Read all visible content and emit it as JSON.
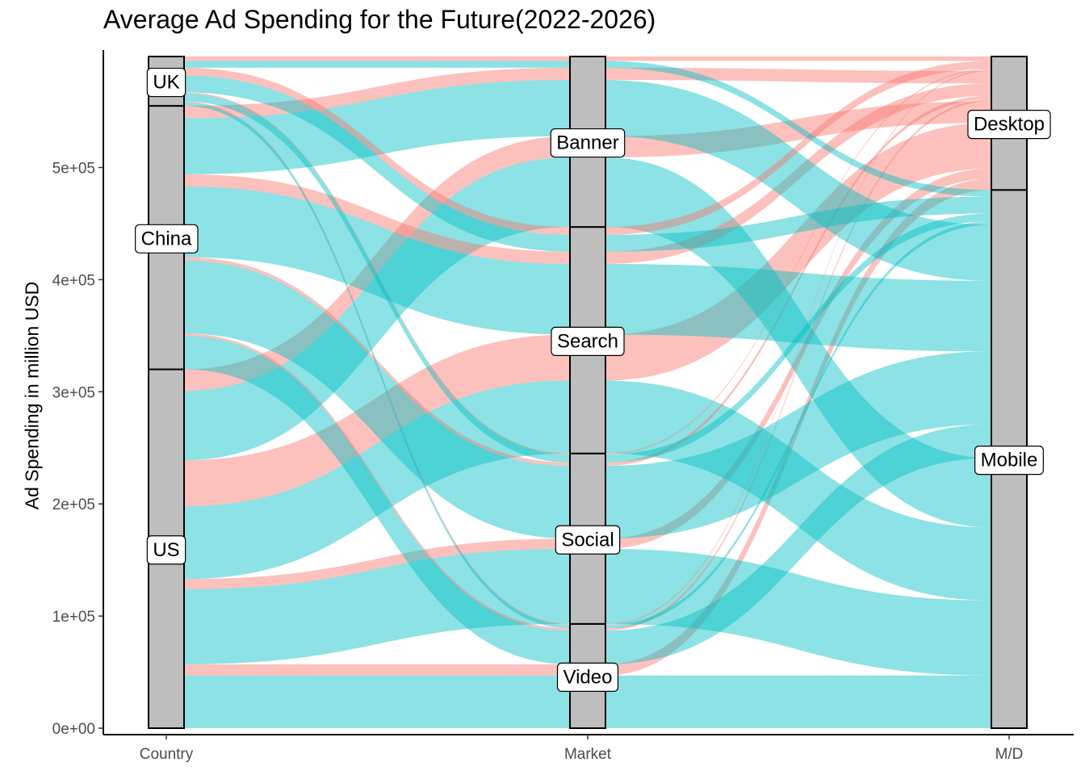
{
  "chart_data": {
    "type": "alluvial",
    "title": "Average Ad Spending for the Future(2022-2026)",
    "ylabel": "Ad Spending  in million USD",
    "xlabel": "",
    "axes": [
      "Country",
      "Market",
      "M/D"
    ],
    "ylim": [
      0,
      560000
    ],
    "yticks": [
      0,
      100000,
      200000,
      300000,
      400000,
      500000
    ],
    "ytick_labels": [
      "0e+00",
      "1e+05",
      "2e+05",
      "3e+05",
      "4e+05",
      "5e+05"
    ],
    "strata": {
      "Country": [
        "US",
        "China",
        "UK"
      ],
      "Market": [
        "Video",
        "Social",
        "Search",
        "Banner"
      ],
      "M/D": [
        "Mobile",
        "Desktop"
      ]
    },
    "flows": [
      {
        "country": "US",
        "market": "Video",
        "device": "Mobile",
        "value": 47000
      },
      {
        "country": "US",
        "market": "Video",
        "device": "Desktop",
        "value": 10000
      },
      {
        "country": "US",
        "market": "Social",
        "device": "Mobile",
        "value": 67000
      },
      {
        "country": "US",
        "market": "Social",
        "device": "Desktop",
        "value": 9000
      },
      {
        "country": "US",
        "market": "Search",
        "device": "Mobile",
        "value": 65000
      },
      {
        "country": "US",
        "market": "Search",
        "device": "Desktop",
        "value": 41000
      },
      {
        "country": "US",
        "market": "Banner",
        "device": "Mobile",
        "value": 62000
      },
      {
        "country": "US",
        "market": "Banner",
        "device": "Desktop",
        "value": 19000
      },
      {
        "country": "China",
        "market": "Video",
        "device": "Mobile",
        "value": 30000
      },
      {
        "country": "China",
        "market": "Video",
        "device": "Desktop",
        "value": 2000
      },
      {
        "country": "China",
        "market": "Social",
        "device": "Mobile",
        "value": 65000
      },
      {
        "country": "China",
        "market": "Social",
        "device": "Desktop",
        "value": 3000
      },
      {
        "country": "China",
        "market": "Search",
        "device": "Mobile",
        "value": 63000
      },
      {
        "country": "China",
        "market": "Search",
        "device": "Desktop",
        "value": 11000
      },
      {
        "country": "China",
        "market": "Banner",
        "device": "Mobile",
        "value": 50000
      },
      {
        "country": "China",
        "market": "Banner",
        "device": "Desktop",
        "value": 11000
      },
      {
        "country": "UK",
        "market": "Video",
        "device": "Mobile",
        "value": 3000
      },
      {
        "country": "UK",
        "market": "Video",
        "device": "Desktop",
        "value": 1000
      },
      {
        "country": "UK",
        "market": "Social",
        "device": "Mobile",
        "value": 7000
      },
      {
        "country": "UK",
        "market": "Social",
        "device": "Desktop",
        "value": 1000
      },
      {
        "country": "UK",
        "market": "Search",
        "device": "Mobile",
        "value": 15000
      },
      {
        "country": "UK",
        "market": "Search",
        "device": "Desktop",
        "value": 7000
      },
      {
        "country": "UK",
        "market": "Banner",
        "device": "Mobile",
        "value": 6000
      },
      {
        "country": "UK",
        "market": "Banner",
        "device": "Desktop",
        "value": 4000
      }
    ],
    "colors": {
      "Mobile": "#00BFC4",
      "Desktop": "#F8766D",
      "stratum": "#bebebe"
    },
    "flow_opacity": 0.45
  }
}
